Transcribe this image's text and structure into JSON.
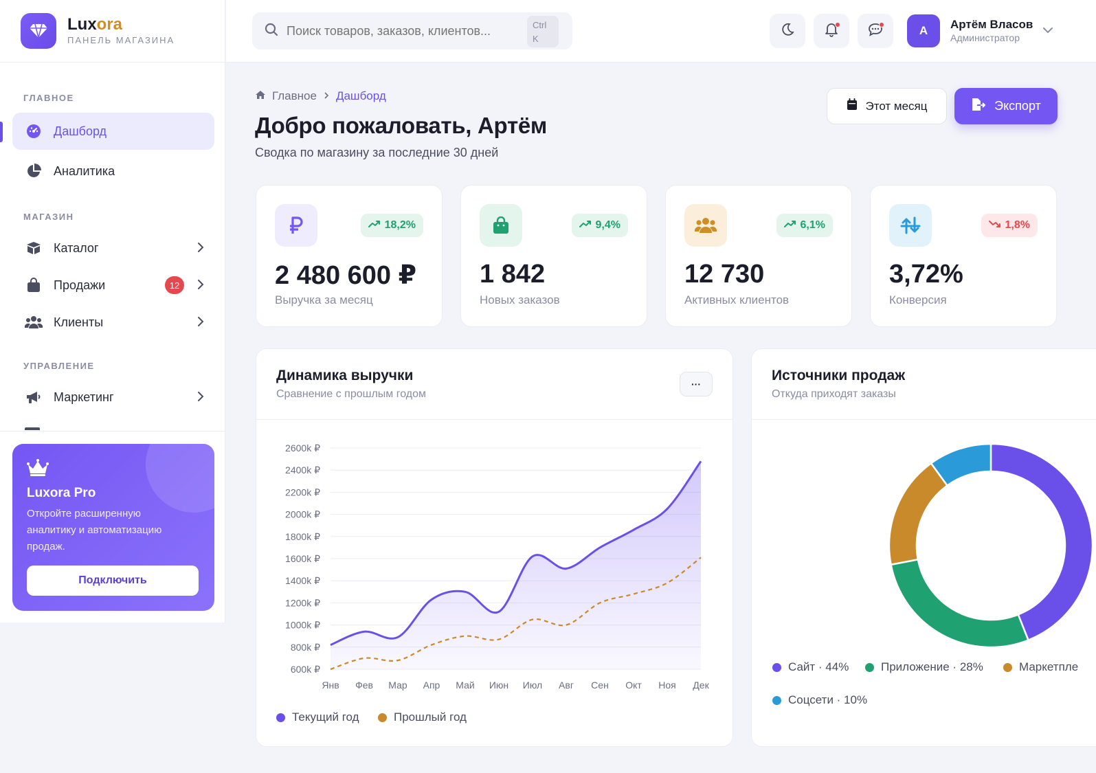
{
  "brand": {
    "name_part1": "Lux",
    "name_part2": "ora",
    "subtitle": "ПАНЕЛЬ МАГАЗИНА"
  },
  "sidebar": {
    "sections": {
      "main": "ГЛАВНОЕ",
      "shop": "МАГАЗИН",
      "manage": "УПРАВЛЕНИЕ"
    },
    "items": [
      {
        "label": "Дашборд",
        "icon": "gauge-icon",
        "active": true
      },
      {
        "label": "Аналитика",
        "icon": "pie-chart-icon"
      },
      {
        "label": "Каталог",
        "icon": "box-icon"
      },
      {
        "label": "Продажи",
        "icon": "shopping-bag-icon",
        "badge": "12"
      },
      {
        "label": "Клиенты",
        "icon": "users-icon"
      },
      {
        "label": "Маркетинг",
        "icon": "megaphone-icon"
      }
    ],
    "promo": {
      "title": "Luxora Pro",
      "text": "Откройте расширенную аналитику и автоматизацию продаж.",
      "button": "Подключить"
    }
  },
  "topbar": {
    "search_placeholder": "Поиск товаров, заказов, клиентов...",
    "shortcut_line1": "Ctrl",
    "shortcut_line2": "K",
    "user": {
      "name": "Артём Власов",
      "role": "Администратор",
      "initial": "А"
    }
  },
  "page": {
    "breadcrumb": {
      "home": "Главное",
      "current": "Дашборд"
    },
    "title": "Добро пожаловать, Артём",
    "subtitle": "Сводка по магазину за последние 30 дней",
    "month_button": "Этот месяц",
    "export_button": "Экспорт"
  },
  "kpis": [
    {
      "value": "2 480 600 ₽",
      "label": "Выручка за месяц",
      "change": "18,2%",
      "trend": "up",
      "icon": "ruble-icon",
      "color": "#7457f3",
      "bg": "#efedfd"
    },
    {
      "value": "1 842",
      "label": "Новых заказов",
      "change": "9,4%",
      "trend": "up",
      "icon": "shopping-bag-icon",
      "color": "#1fa171",
      "bg": "#e3f5ec"
    },
    {
      "value": "12 730",
      "label": "Активных клиентов",
      "change": "6,1%",
      "trend": "up",
      "icon": "users-icon",
      "color": "#d08d25",
      "bg": "#fbeedb"
    },
    {
      "value": "3,72%",
      "label": "Конверсия",
      "change": "1,8%",
      "trend": "down",
      "icon": "arrows-swap-icon",
      "color": "#2a9bd8",
      "bg": "#e2f2fb"
    }
  ],
  "revenue_card": {
    "title": "Динамика выручки",
    "subtitle": "Сравнение с прошлым годом",
    "more": "···"
  },
  "sources_card": {
    "title": "Источники продаж",
    "subtitle": "Откуда приходят заказы"
  },
  "chart_data": [
    {
      "type": "area",
      "title": "Динамика выручки",
      "categories": [
        "Янв",
        "Фев",
        "Мар",
        "Апр",
        "Май",
        "Июн",
        "Июл",
        "Авг",
        "Сен",
        "Окт",
        "Ноя",
        "Дек"
      ],
      "ylim": [
        600,
        2600
      ],
      "yticks": [
        "600k ₽",
        "800k ₽",
        "1000k ₽",
        "1200k ₽",
        "1400k ₽",
        "1600k ₽",
        "1800k ₽",
        "2000k ₽",
        "2200k ₽",
        "2400k ₽",
        "2600k ₽"
      ],
      "series": [
        {
          "name": "Текущий год",
          "color": "#6a50e8",
          "style": "solid-filled",
          "values": [
            820,
            940,
            890,
            1230,
            1300,
            1120,
            1620,
            1510,
            1700,
            1860,
            2050,
            2480
          ]
        },
        {
          "name": "Прошлый год",
          "color": "#c98a2b",
          "style": "dashed",
          "values": [
            600,
            700,
            680,
            820,
            900,
            870,
            1050,
            1000,
            1200,
            1280,
            1380,
            1610
          ]
        }
      ],
      "legend": "bottom-left",
      "grid": true
    },
    {
      "type": "pie",
      "title": "Источники продаж",
      "style": "donut",
      "slices": [
        {
          "label": "Сайт · 44%",
          "value": 44,
          "color": "#6a50e8"
        },
        {
          "label": "Приложение · 28%",
          "value": 28,
          "color": "#1fa171"
        },
        {
          "label": "Маркетпле",
          "value": 18,
          "color": "#c98a2b"
        },
        {
          "label": "Соцсети · 10%",
          "value": 10,
          "color": "#2a9bd8"
        }
      ],
      "legend": "bottom"
    }
  ]
}
